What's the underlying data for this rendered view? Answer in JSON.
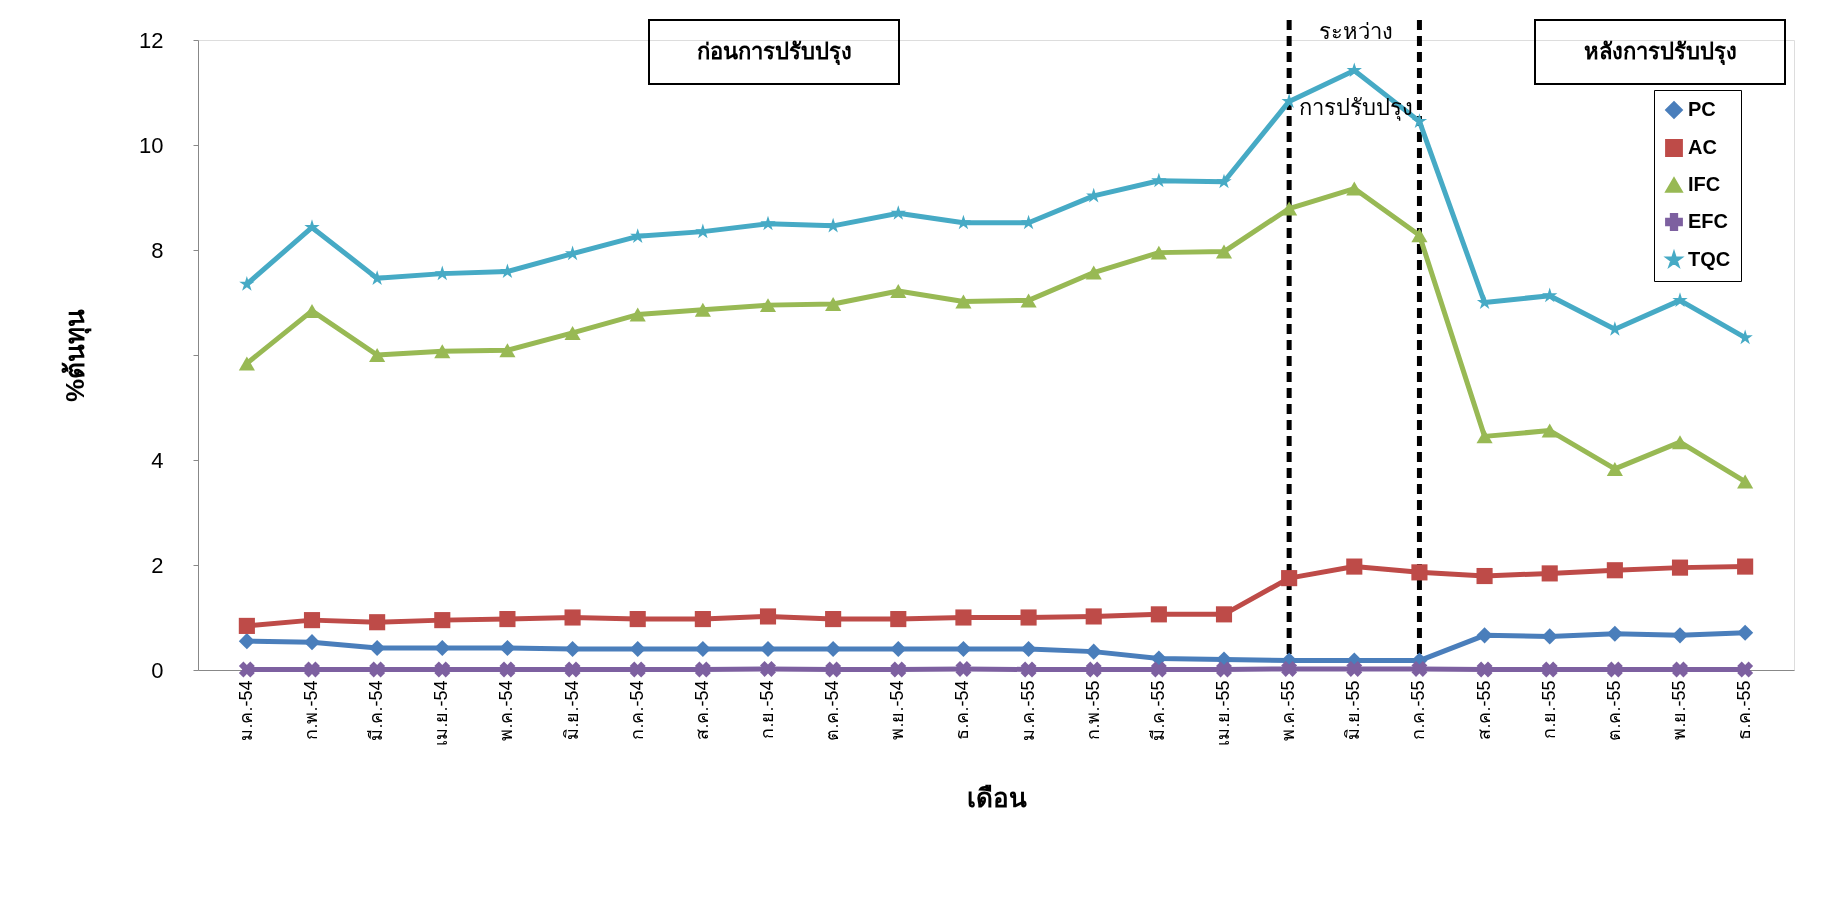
{
  "chart_data": {
    "type": "line",
    "xlabel": "เดือน",
    "ylabel": "%ต้นทุน",
    "categories": [
      "ม.ค.-54",
      "ก.พ.-54",
      "มี.ค.-54",
      "เม.ย.-54",
      "พ.ค.-54",
      "มิ.ย.-54",
      "ก.ค.-54",
      "ส.ค.-54",
      "ก.ย.-54",
      "ต.ค.-54",
      "พ.ย.-54",
      "ธ.ค.-54",
      "ม.ค.-55",
      "ก.พ.-55",
      "มี.ค.-55",
      "เม.ย.-55",
      "พ.ค.-55",
      "มิ.ย.-55",
      "ก.ค.-55",
      "ส.ค.-55",
      "ก.ย.-55",
      "ต.ค.-55",
      "พ.ย.-55",
      "ธ.ค.-55"
    ],
    "series": [
      {
        "name": "PC",
        "color": "#4a7ebb",
        "marker": "diamond",
        "values": [
          0.55,
          0.53,
          0.42,
          0.42,
          0.42,
          0.4,
          0.4,
          0.4,
          0.4,
          0.4,
          0.4,
          0.4,
          0.4,
          0.35,
          0.22,
          0.2,
          0.18,
          0.18,
          0.18,
          0.66,
          0.64,
          0.69,
          0.66,
          0.71
        ]
      },
      {
        "name": "AC",
        "color": "#be4b48",
        "marker": "square",
        "values": [
          0.84,
          0.95,
          0.91,
          0.95,
          0.97,
          1.0,
          0.97,
          0.97,
          1.02,
          0.97,
          0.97,
          1.0,
          1.0,
          1.02,
          1.06,
          1.06,
          1.75,
          1.97,
          1.86,
          1.79,
          1.84,
          1.9,
          1.95,
          1.97
        ]
      },
      {
        "name": "IFC",
        "color": "#98b954",
        "marker": "triangle",
        "values": [
          5.84,
          6.84,
          6.0,
          6.07,
          6.09,
          6.42,
          6.77,
          6.86,
          6.95,
          6.97,
          7.22,
          7.02,
          7.04,
          7.57,
          7.95,
          7.97,
          8.79,
          9.17,
          8.28,
          4.45,
          4.56,
          3.83,
          4.34,
          3.59
        ]
      },
      {
        "name": "EFC",
        "color": "#7d60a0",
        "marker": "cross",
        "values": [
          0.01,
          0.01,
          0.01,
          0.01,
          0.01,
          0.01,
          0.01,
          0.01,
          0.02,
          0.01,
          0.01,
          0.02,
          0.01,
          0.01,
          0.01,
          0.01,
          0.02,
          0.02,
          0.02,
          0.01,
          0.01,
          0.01,
          0.01,
          0.01
        ]
      },
      {
        "name": "TQC",
        "color": "#46aac5",
        "marker": "star",
        "values": [
          7.35,
          8.43,
          7.46,
          7.55,
          7.59,
          7.93,
          8.26,
          8.35,
          8.5,
          8.46,
          8.7,
          8.52,
          8.52,
          9.03,
          9.32,
          9.3,
          10.83,
          11.42,
          10.45,
          7.0,
          7.13,
          6.49,
          7.04,
          6.33
        ]
      }
    ],
    "ylim": [
      0,
      12
    ],
    "yticks": [
      0,
      2,
      4,
      {
        "value": 6,
        "label": null
      },
      8,
      10,
      12
    ],
    "ref_lines": [
      {
        "axis": "x",
        "value": "พ.ค.-55",
        "color": "#000000",
        "line_style": "dashed"
      },
      {
        "axis": "x",
        "value": "ก.ค.-55",
        "color": "#000000",
        "line_style": "dashed"
      }
    ],
    "annotations": [
      "ก่อนการปรับปรุง",
      "ระหว่าง\nการปรับปรุง",
      "หลังการปรับปรุง"
    ],
    "grid": false,
    "legend": "top right",
    "line_style": "solid"
  }
}
